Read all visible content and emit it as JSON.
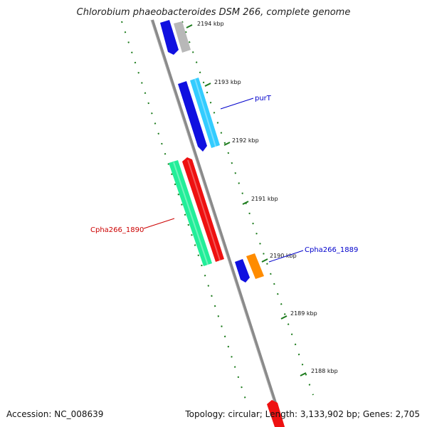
{
  "title": "Chlorobium phaeobacteroides DSM 266, complete genome",
  "footer": {
    "accession": "Accession: NC_008639",
    "topology": "Topology: circular; Length: 3,133,902 bp; Genes: 2,705"
  },
  "scale_labels": [
    "2194 kbp",
    "2193 kbp",
    "2192 kbp",
    "2191 kbp",
    "2190 kbp",
    "2189 kbp",
    "2188 kbp"
  ],
  "gene_labels": [
    {
      "text": "purT",
      "color": "#0000cc"
    },
    {
      "text": "Cpha266_1890",
      "color": "#cc0000"
    },
    {
      "text": "Cpha266_1889",
      "color": "#0000cc"
    }
  ],
  "colors": {
    "backbone": "#808080",
    "tick": "#1a7a1a",
    "gene_blue": "#1010e0",
    "gene_cyan": "#33ccff",
    "gene_gray": "#b8b8b8",
    "gene_green": "#22ee99",
    "gene_red": "#ee1111",
    "gene_orange": "#ff8c00"
  }
}
